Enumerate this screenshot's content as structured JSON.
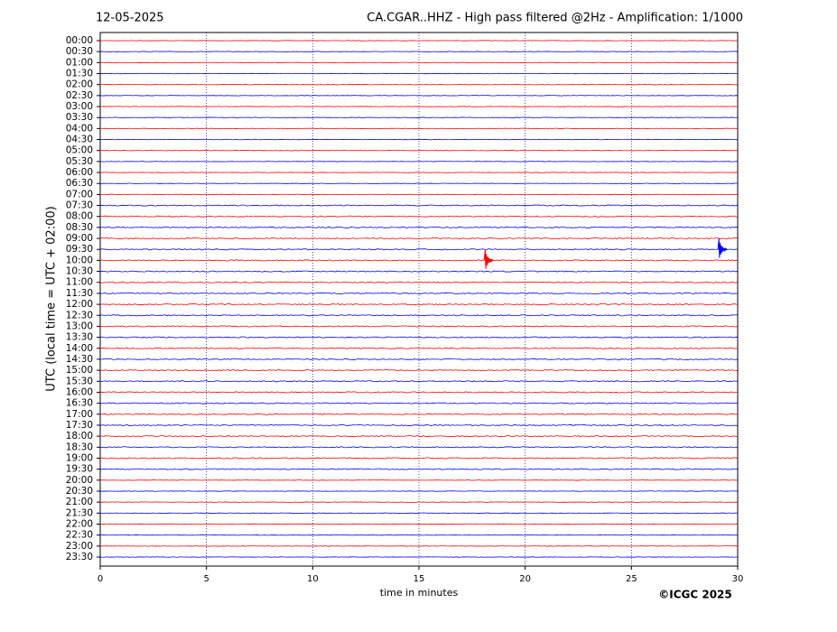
{
  "chart_data": {
    "type": "helicorder",
    "date": "12-05-2025",
    "title": "CA.CGAR..HHZ - High pass filtered @2Hz - Amplification: 1/1000",
    "ylabel": "UTC (local time = UTC + 02:00)",
    "xlabel": "time in minutes",
    "credit": "©ICGC 2025",
    "categories": [
      "00:00",
      "00:30",
      "01:00",
      "01:30",
      "02:00",
      "02:30",
      "03:00",
      "03:30",
      "04:00",
      "04:30",
      "05:00",
      "05:30",
      "06:00",
      "06:30",
      "07:00",
      "07:30",
      "08:00",
      "08:30",
      "09:00",
      "09:30",
      "10:00",
      "10:30",
      "11:00",
      "11:30",
      "12:00",
      "12:30",
      "13:00",
      "13:30",
      "14:00",
      "14:30",
      "15:00",
      "15:30",
      "16:00",
      "16:30",
      "17:00",
      "17:30",
      "18:00",
      "18:30",
      "19:00",
      "19:30",
      "20:00",
      "20:30",
      "21:00",
      "21:30",
      "22:00",
      "22:30",
      "23:00",
      "23:30"
    ],
    "row_colors": [
      "#ff0000",
      "#0000ff"
    ],
    "xlim": [
      0,
      30
    ],
    "xticks": [
      0,
      5,
      10,
      15,
      20,
      25,
      30
    ],
    "grid": true,
    "events": [
      {
        "row": 20,
        "x": 18.2
      },
      {
        "row": 19,
        "x": 29.2
      }
    ]
  }
}
